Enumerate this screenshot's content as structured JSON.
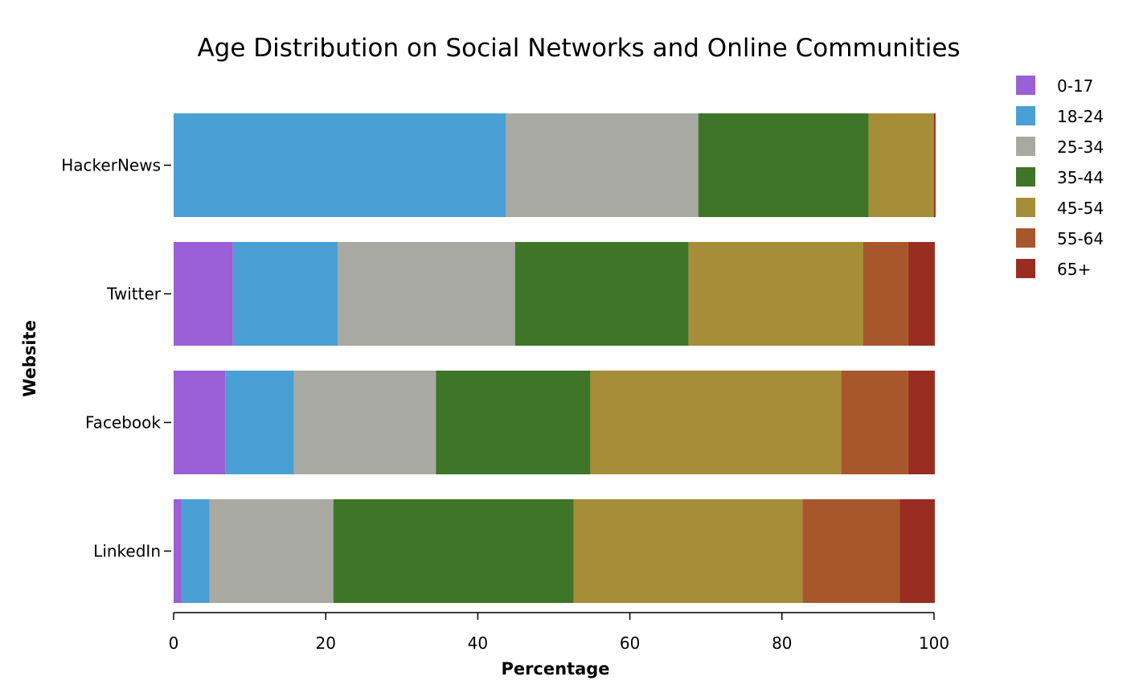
{
  "chart_data": {
    "type": "bar",
    "orientation": "horizontal",
    "stacked": true,
    "title": "Age Distribution on Social Networks and Online Communities",
    "xlabel": "Percentage",
    "ylabel": "Website",
    "xlim": [
      0,
      100
    ],
    "xticks": [
      0,
      20,
      40,
      60,
      80,
      100
    ],
    "grid": false,
    "legend_position": "top-right",
    "categories": [
      "HackerNews",
      "Twitter",
      "Facebook",
      "LinkedIn"
    ],
    "series": [
      {
        "name": "0-17",
        "color": "#9b5fd6",
        "values": [
          0.0,
          7.8,
          6.8,
          1.0
        ]
      },
      {
        "name": "18-24",
        "color": "#4a9fd5",
        "values": [
          43.7,
          13.8,
          9.0,
          3.7
        ]
      },
      {
        "name": "25-34",
        "color": "#a8aaa2",
        "values": [
          25.3,
          23.3,
          18.7,
          16.3
        ]
      },
      {
        "name": "35-44",
        "color": "#3e7529",
        "values": [
          22.4,
          22.8,
          20.3,
          31.6
        ]
      },
      {
        "name": "45-54",
        "color": "#a68d38",
        "values": [
          8.6,
          23.0,
          33.0,
          30.1
        ]
      },
      {
        "name": "55-64",
        "color": "#a8562c",
        "values": [
          0.0,
          5.9,
          8.8,
          12.8
        ]
      },
      {
        "name": "65+",
        "color": "#992d22",
        "values": [
          0.2,
          3.5,
          3.5,
          4.6
        ]
      }
    ]
  }
}
